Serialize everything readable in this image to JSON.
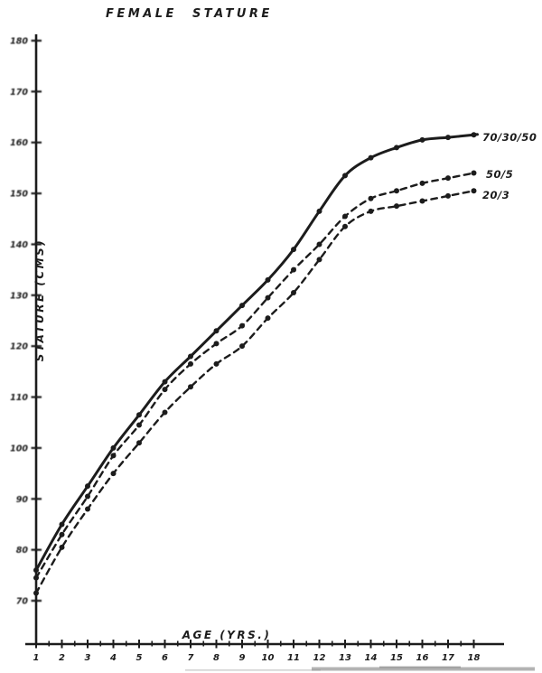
{
  "page": {
    "title": "FEMALE STATURE"
  },
  "chart_data": {
    "type": "line",
    "title": "FEMALE STATURE",
    "xlabel": "AGE (YRS.)",
    "ylabel": "STATURE (CMS)",
    "xlim": [
      1,
      18
    ],
    "ylim": [
      70,
      180
    ],
    "grid": false,
    "legend_position": "at-curve-ends-right",
    "x_ticks": [
      1,
      2,
      3,
      4,
      5,
      6,
      7,
      8,
      9,
      10,
      11,
      12,
      13,
      14,
      15,
      16,
      17,
      18
    ],
    "x_minor_tick_step": 0.5,
    "y_ticks": [
      180,
      170,
      160,
      150,
      140,
      130,
      120,
      110,
      100,
      90,
      80,
      70
    ],
    "x": [
      1,
      2,
      3,
      4,
      5,
      6,
      7,
      8,
      9,
      10,
      11,
      12,
      13,
      14,
      15,
      16,
      17,
      18
    ],
    "series": [
      {
        "name": "70/30/50",
        "style": "solid",
        "values": [
          76,
          85,
          92.5,
          100,
          106.5,
          113,
          118,
          123,
          128,
          133,
          139,
          146.5,
          153.5,
          157,
          159,
          160.5,
          161,
          161.5
        ]
      },
      {
        "name": "50/5",
        "style": "dashed",
        "values": [
          74.5,
          83,
          90.5,
          98.5,
          104.5,
          111.5,
          116.5,
          120.5,
          124,
          129.5,
          135,
          140,
          145.5,
          149,
          150.5,
          152,
          153,
          154
        ]
      },
      {
        "name": "20/3",
        "style": "dashed",
        "values": [
          71.5,
          80.5,
          88,
          95,
          101,
          107,
          112,
          116.5,
          120,
          125.5,
          130.5,
          137,
          143.5,
          146.5,
          147.5,
          148.5,
          149.5,
          150.5
        ]
      }
    ],
    "ink_color": "#1c1c1c",
    "paper_color": "#ffffff"
  }
}
